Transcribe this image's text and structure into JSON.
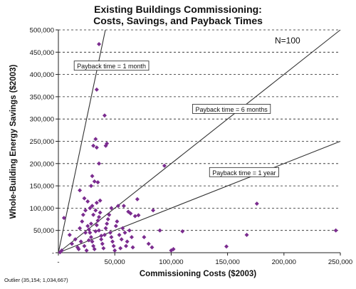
{
  "chart_data": {
    "type": "scatter",
    "title_line1": "Existing Buildings Commissioning:",
    "title_line2": "Costs, Savings, and Payback Times",
    "xlabel": "Commissioning Costs ($2003)",
    "ylabel": "Whole-Building Energy Savings ($2003)",
    "xlim": [
      0,
      250000
    ],
    "ylim": [
      0,
      500000
    ],
    "x_ticks": [
      {
        "value": 0,
        "label": "-"
      },
      {
        "value": 50000,
        "label": "50,000"
      },
      {
        "value": 100000,
        "label": "100,000"
      },
      {
        "value": 150000,
        "label": "150,000"
      },
      {
        "value": 200000,
        "label": "200,000"
      },
      {
        "value": 250000,
        "label": "250,000"
      }
    ],
    "y_ticks": [
      {
        "value": 0,
        "label": "-"
      },
      {
        "value": 50000,
        "label": "50,000"
      },
      {
        "value": 100000,
        "label": "100,000"
      },
      {
        "value": 150000,
        "label": "150,000"
      },
      {
        "value": 200000,
        "label": "200,000"
      },
      {
        "value": 250000,
        "label": "250,000"
      },
      {
        "value": 300000,
        "label": "300,000"
      },
      {
        "value": 350000,
        "label": "350,000"
      },
      {
        "value": 400000,
        "label": "400,000"
      },
      {
        "value": 450000,
        "label": "450,000"
      },
      {
        "value": 500000,
        "label": "500,000"
      }
    ],
    "grid": "horizontal-dashed",
    "n_label": "N=100",
    "outlier_note": "Outlier (35,154; 1,034,667)",
    "marker_color": "#7B2C8F",
    "payback_lines": [
      {
        "label": "Payback time = 1 month",
        "savings_per_cost": 12,
        "label_at": [
          14000,
          419000
        ]
      },
      {
        "label": "Payback time = 6 months",
        "savings_per_cost": 2,
        "label_at": [
          119000,
          322000
        ]
      },
      {
        "label": "Payback time = 1 year",
        "savings_per_cost": 1,
        "label_at": [
          134000,
          180000
        ]
      }
    ],
    "points": [
      [
        36000,
        468000
      ],
      [
        34000,
        366000
      ],
      [
        41000,
        308000
      ],
      [
        33000,
        255000
      ],
      [
        31000,
        240000
      ],
      [
        43000,
        245000
      ],
      [
        42000,
        240000
      ],
      [
        34000,
        236000
      ],
      [
        36000,
        200000
      ],
      [
        30000,
        172000
      ],
      [
        94000,
        195000
      ],
      [
        19000,
        140000
      ],
      [
        23000,
        122000
      ],
      [
        29000,
        150000
      ],
      [
        32000,
        160000
      ],
      [
        35000,
        158000
      ],
      [
        26000,
        115000
      ],
      [
        30000,
        105000
      ],
      [
        34000,
        112000
      ],
      [
        37000,
        117000
      ],
      [
        70000,
        120000
      ],
      [
        62000,
        92000
      ],
      [
        84000,
        95000
      ],
      [
        71000,
        84000
      ],
      [
        68000,
        82000
      ],
      [
        64000,
        88000
      ],
      [
        53000,
        105000
      ],
      [
        47000,
        100000
      ],
      [
        58000,
        105000
      ],
      [
        176000,
        110000
      ],
      [
        246000,
        50000
      ],
      [
        167000,
        40000
      ],
      [
        110000,
        48000
      ],
      [
        100000,
        5000
      ],
      [
        102000,
        8000
      ],
      [
        149000,
        14000
      ],
      [
        76000,
        35000
      ],
      [
        90000,
        50000
      ],
      [
        80000,
        20000
      ],
      [
        83000,
        12000
      ],
      [
        60000,
        15000
      ],
      [
        55000,
        10000
      ],
      [
        5000,
        78000
      ],
      [
        10000,
        40000
      ],
      [
        3000,
        5000
      ],
      [
        1500,
        1000
      ],
      [
        12000,
        20000
      ],
      [
        15000,
        30000
      ],
      [
        17000,
        12000
      ],
      [
        19000,
        55000
      ],
      [
        21000,
        70000
      ],
      [
        22000,
        85000
      ],
      [
        24000,
        95000
      ],
      [
        26000,
        60000
      ],
      [
        27000,
        52000
      ],
      [
        28000,
        45000
      ],
      [
        29000,
        35000
      ],
      [
        30000,
        25000
      ],
      [
        31000,
        15000
      ],
      [
        32000,
        8000
      ],
      [
        33000,
        48000
      ],
      [
        34000,
        62000
      ],
      [
        35000,
        72000
      ],
      [
        36000,
        80000
      ],
      [
        37000,
        90000
      ],
      [
        38000,
        30000
      ],
      [
        39000,
        20000
      ],
      [
        40000,
        10000
      ],
      [
        41000,
        40000
      ],
      [
        42000,
        55000
      ],
      [
        43000,
        65000
      ],
      [
        44000,
        75000
      ],
      [
        45000,
        85000
      ],
      [
        46000,
        45000
      ],
      [
        47000,
        35000
      ],
      [
        48000,
        25000
      ],
      [
        49000,
        15000
      ],
      [
        50000,
        5000
      ],
      [
        51000,
        60000
      ],
      [
        52000,
        70000
      ],
      [
        54000,
        40000
      ],
      [
        56000,
        30000
      ],
      [
        57000,
        55000
      ],
      [
        59000,
        45000
      ],
      [
        61000,
        25000
      ],
      [
        63000,
        50000
      ],
      [
        65000,
        35000
      ],
      [
        66000,
        12000
      ],
      [
        18000,
        8000
      ],
      [
        20000,
        25000
      ],
      [
        23000,
        15000
      ],
      [
        25000,
        5000
      ],
      [
        27000,
        28000
      ],
      [
        29000,
        65000
      ],
      [
        31000,
        85000
      ],
      [
        33000,
        95000
      ],
      [
        28000,
        100000
      ],
      [
        24000,
        45000
      ],
      [
        36000,
        50000
      ],
      [
        38000,
        38000
      ]
    ]
  }
}
